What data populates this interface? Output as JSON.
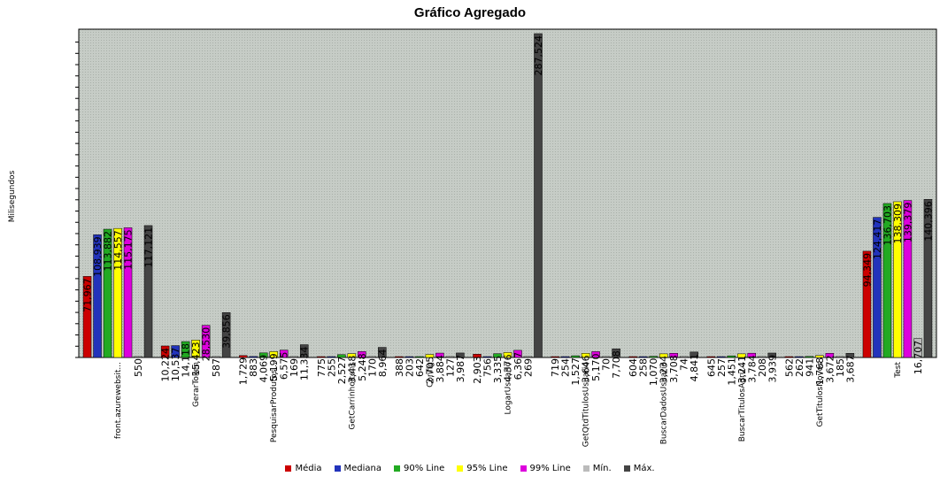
{
  "chart_data": {
    "type": "bar",
    "title": "Gráfico Agregado",
    "ylabel": "Milisegundos",
    "xlabel": "",
    "ylim": [
      0,
      287524
    ],
    "grid": true,
    "legend_position": "bottom",
    "categories": [
      "front.azurewebsit...",
      "GerarToken",
      "PesquisarProdutos...",
      "GetCarrinhoItens",
      "Config",
      "LogarUsuario",
      "GetQtdTitulosUsuario",
      "BuscarDadosUsuario",
      "BuscarTitulosAgru...",
      "GetTitulosNovos",
      "Test"
    ],
    "series": [
      {
        "name": "Média",
        "color": "#cc0000",
        "values": [
          71967,
          10224,
          1729,
          775,
          388,
          2903,
          719,
          604,
          645,
          562,
          94349
        ]
      },
      {
        "name": "Mediana",
        "color": "#2233bb",
        "values": [
          108939,
          10537,
          883,
          255,
          203,
          756,
          254,
          258,
          257,
          262,
          124417
        ]
      },
      {
        "name": "90% Line",
        "color": "#22aa22",
        "values": [
          113882,
          14118,
          4069,
          2527,
          642,
          3335,
          1527,
          1070,
          1451,
          941,
          136703
        ]
      },
      {
        "name": "95% Line",
        "color": "#ffff00",
        "values": [
          114557,
          15423,
          5199,
          3418,
          2705,
          4376,
          3646,
          3234,
          3241,
          1768,
          138309
        ]
      },
      {
        "name": "99% Line",
        "color": "#dd00dd",
        "values": [
          115175,
          28530,
          6575,
          5248,
          3884,
          6367,
          5170,
          3708,
          3784,
          3672,
          139379
        ]
      },
      {
        "name": "Mín.",
        "color": "#bbbbbb",
        "values": [
          550,
          587,
          169,
          170,
          127,
          269,
          70,
          74,
          208,
          185,
          16707
        ]
      },
      {
        "name": "Máx.",
        "color": "#444444",
        "values": [
          117121,
          39856,
          11334,
          8964,
          3987,
          287524,
          7708,
          4841,
          3939,
          3687,
          140396
        ]
      }
    ],
    "bar_labels": [
      [
        "71,967",
        "108,939",
        "113,882",
        "114,557",
        "115,175",
        "550",
        "117,121"
      ],
      [
        "10,224",
        "10,537",
        "14,118",
        "15,423",
        "28,530",
        "587",
        "39,856"
      ],
      [
        "1,729",
        "883",
        "4,069",
        "5,199",
        "6,575",
        "169",
        "11,334"
      ],
      [
        "775",
        "255",
        "2,527",
        "3,418",
        "5,248",
        "170",
        "8,964"
      ],
      [
        "388",
        "203",
        "642",
        "2,705",
        "3,884",
        "127",
        "3,987"
      ],
      [
        "2,903",
        "756",
        "3,335",
        "4,376",
        "6,367",
        "269",
        "287,524"
      ],
      [
        "719",
        "254",
        "1,527",
        "3,646",
        "5,170",
        "70",
        "7,708"
      ],
      [
        "604",
        "258",
        "1,070",
        "3,234",
        "3,708",
        "74",
        "4,841"
      ],
      [
        "645",
        "257",
        "1,451",
        "3,241",
        "3,784",
        "208",
        "3,939"
      ],
      [
        "562",
        "262",
        "941",
        "1,768",
        "3,672",
        "185",
        "3,687"
      ],
      [
        "94,349",
        "124,417",
        "136,703",
        "138,309",
        "139,379",
        "16,707",
        "140,396"
      ]
    ]
  }
}
